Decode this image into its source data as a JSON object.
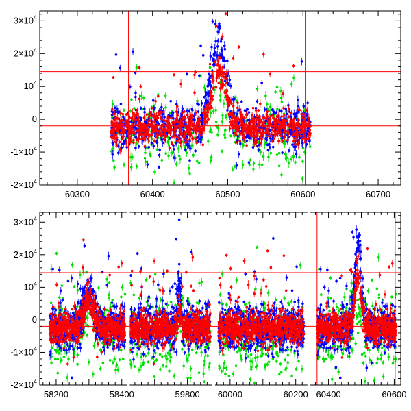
{
  "chart_data": [
    {
      "type": "scatter",
      "panel": "top",
      "xlim": [
        60250,
        60730
      ],
      "ylim": [
        -20000,
        33000
      ],
      "x_ticks": [
        60300,
        60400,
        60500,
        60600,
        60700
      ],
      "x_tick_labels": [
        "60300",
        "60400",
        "60500",
        "60600",
        "60700"
      ],
      "y_ticks": [
        -20000,
        -10000,
        0,
        10000,
        20000,
        30000
      ],
      "y_tick_labels": [
        {
          "base": "-2×10",
          "exp": "4"
        },
        {
          "base": "-1×10",
          "exp": "4"
        },
        {
          "base": "0",
          "exp": ""
        },
        {
          "base": "10",
          "exp": "4"
        },
        {
          "base": "2×10",
          "exp": "4"
        },
        {
          "base": "3×10",
          "exp": "4"
        }
      ],
      "hlines": [
        14500,
        -2000
      ],
      "vlines": [
        60368,
        60603
      ],
      "series_colors": [
        "#00e000",
        "#0000ff",
        "#ff0000"
      ],
      "bursts": [
        {
          "center": 60488,
          "width": 14,
          "peak_red": 17000,
          "peak_blue": 27000,
          "peak_green": 9000
        }
      ],
      "data_range": [
        60345,
        60610
      ]
    },
    {
      "type": "scatter",
      "panel": "bottom",
      "ylim": [
        -20000,
        33000
      ],
      "segments": [
        {
          "xlim": [
            58150,
            58420
          ],
          "data_range": [
            58180,
            58410
          ],
          "x_ticks": [
            58200,
            58300,
            58400
          ],
          "x_tick_labels": [
            "58200",
            "",
            "58400"
          ]
        },
        {
          "xlim": [
            59620,
            59880
          ],
          "data_range": [
            59625,
            59870
          ],
          "x_ticks": [
            59700,
            59800
          ],
          "x_tick_labels": [
            "",
            "59800"
          ]
        },
        {
          "xlim": [
            59950,
            60240
          ],
          "data_range": [
            59965,
            60225
          ],
          "x_ticks": [
            60000,
            60100,
            60200
          ],
          "x_tick_labels": [
            "60000",
            "",
            "60200"
          ]
        },
        {
          "xlim": [
            60340,
            60620
          ],
          "data_range": [
            60365,
            60605
          ],
          "x_ticks": [
            60400,
            60500,
            60600
          ],
          "x_tick_labels": [
            "60400",
            "",
            "60600"
          ]
        }
      ],
      "y_ticks": [
        -20000,
        -10000,
        0,
        10000,
        20000,
        30000
      ],
      "y_tick_labels": [
        {
          "base": "-2×10",
          "exp": "4"
        },
        {
          "base": "-1×10",
          "exp": "4"
        },
        {
          "base": "0",
          "exp": ""
        },
        {
          "base": "10",
          "exp": "4"
        },
        {
          "base": "2×10",
          "exp": "4"
        },
        {
          "base": "3×10",
          "exp": "4"
        }
      ],
      "hlines": [
        14500,
        -2000
      ],
      "vlines": [
        60365,
        60603
      ],
      "series_colors": [
        "#00e000",
        "#0000ff",
        "#ff0000"
      ],
      "bursts": [
        {
          "center": 60490,
          "width": 14,
          "peak_red": 17000,
          "peak_blue": 27000,
          "peak_green": 9000
        },
        {
          "center": 59775,
          "width": 6,
          "peak_red": 6000,
          "peak_blue": 14000,
          "peak_green": 12000
        },
        {
          "center": 58300,
          "width": 20,
          "peak_red": 9000,
          "peak_blue": 12000,
          "peak_green": 8000
        }
      ]
    }
  ]
}
